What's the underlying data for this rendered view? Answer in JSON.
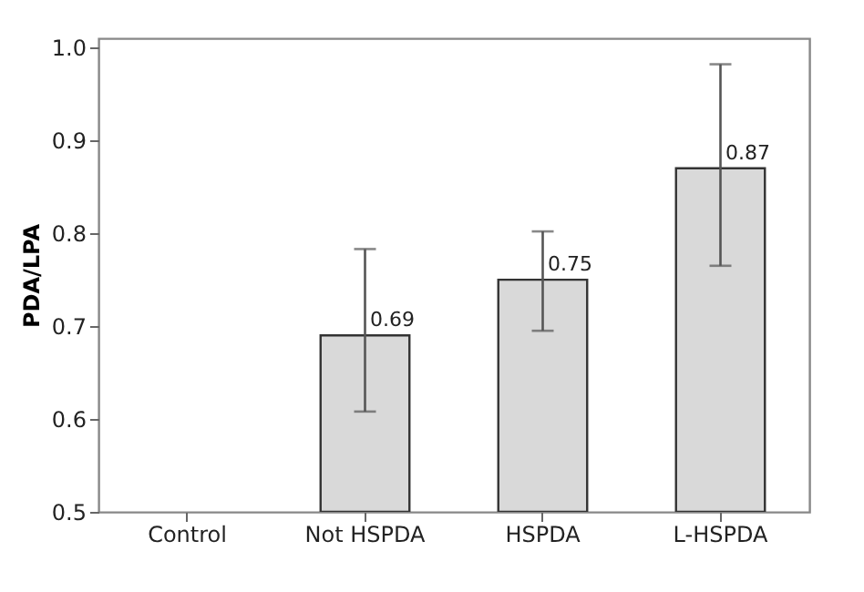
{
  "chart_data": {
    "type": "bar",
    "ylabel": "PDA/LPA",
    "categories": [
      "Control",
      "Not HSPDA",
      "HSPDA",
      "L-HSPDA"
    ],
    "values": [
      null,
      0.69,
      0.75,
      0.87
    ],
    "errors": [
      null,
      [
        0.608,
        0.783
      ],
      [
        0.695,
        0.802
      ],
      [
        0.765,
        0.982
      ]
    ],
    "color": "#d9d9d9",
    "ylim": [
      0.5,
      1.01
    ],
    "yticks": [
      0.5,
      0.6,
      0.7,
      0.8,
      0.9,
      {
        "value": 1,
        "label": "1.0"
      }
    ],
    "data_labels": true,
    "grid": false
  }
}
